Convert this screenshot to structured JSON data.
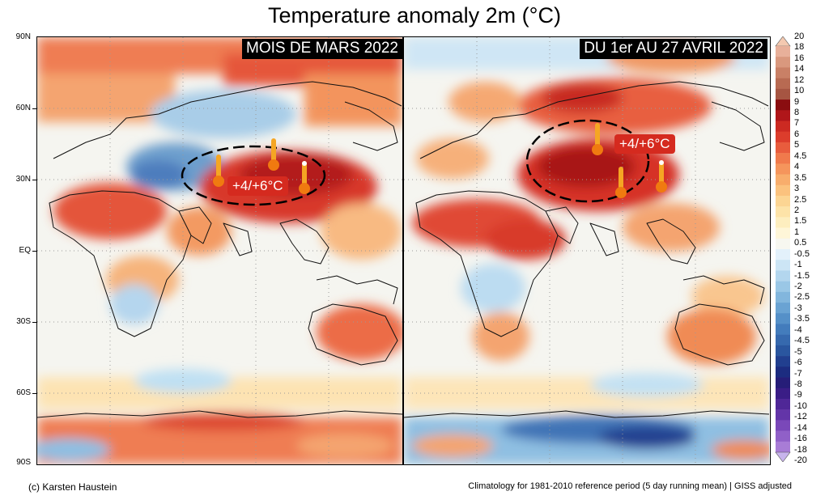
{
  "title": "Temperature anomaly 2m (°C)",
  "panels": [
    {
      "label": "MOIS DE MARS 2022",
      "annotation": "+4/+6°C"
    },
    {
      "label": "DU 1er AU 27 AVRIL 2022",
      "annotation": "+4/+6°C"
    }
  ],
  "lat_labels": [
    "90N",
    "60N",
    "30N",
    "EQ",
    "30S",
    "60S",
    "90S"
  ],
  "colorbar": {
    "labels": [
      "20",
      "18",
      "16",
      "14",
      "12",
      "10",
      "9",
      "8",
      "7",
      "6",
      "5",
      "4.5",
      "4",
      "3.5",
      "3",
      "2.5",
      "2",
      "1.5",
      "1",
      "0.5",
      "-0.5",
      "-1",
      "-1.5",
      "-2",
      "-2.5",
      "-3",
      "-3.5",
      "-4",
      "-4.5",
      "-5",
      "-6",
      "-7",
      "-8",
      "-9",
      "-10",
      "-12",
      "-14",
      "-16",
      "-18",
      "-20"
    ],
    "colors": [
      "#f4cbb8",
      "#e8b09a",
      "#d9987e",
      "#c98066",
      "#b86a52",
      "#a65542",
      "#8a0d10",
      "#b0161a",
      "#cc2a22",
      "#dc3d2c",
      "#e85c3d",
      "#f07a4c",
      "#f5955c",
      "#f8ad6c",
      "#fbc27e",
      "#fcd593",
      "#fde3a8",
      "#fdeebf",
      "#fef6d8",
      "#f7f7f0",
      "#e3f1fb",
      "#cce5f5",
      "#b3d6ee",
      "#9ac7e6",
      "#82b6dd",
      "#6aa3d3",
      "#5590c8",
      "#437cbc",
      "#3669ae",
      "#2a569f",
      "#213f8f",
      "#1c2c80",
      "#261d78",
      "#3a1d86",
      "#4f2797",
      "#6335a8",
      "#7a48b9",
      "#9060c8",
      "#a87cd6",
      "#c4a1e4"
    ],
    "accent_colors": {
      "top_arrow": "#f4c9b0",
      "bottom_arrow": "#c8b4ec"
    }
  },
  "footer": {
    "credit": "(c) Karsten Haustein",
    "note": "Climatology for 1981-2010 reference period (5 day running mean) | GISS adjusted"
  }
}
